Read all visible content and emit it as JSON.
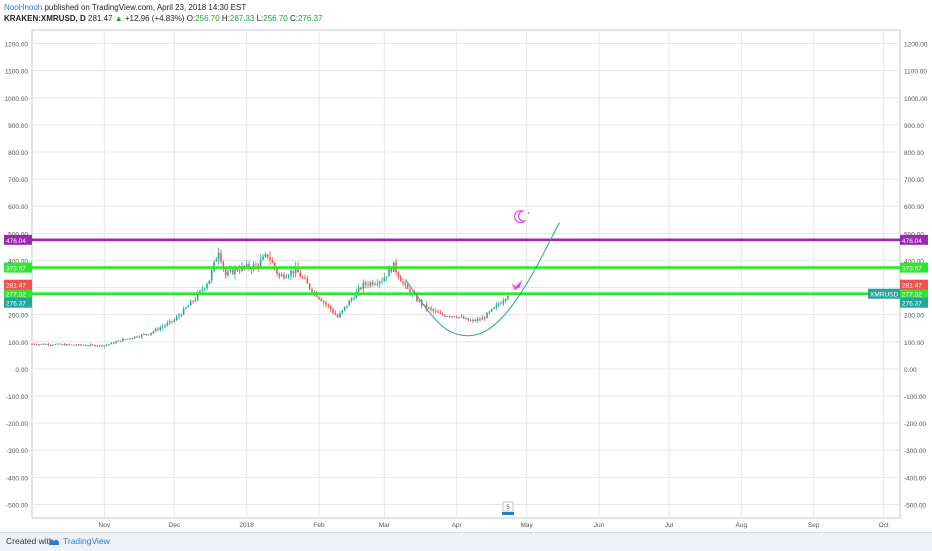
{
  "header": {
    "author": "NooHnooh",
    "published": " published on TradingView.com, April 23, 2018 14:30 EST",
    "symbol": "KRAKEN:XMRUSD, D",
    "last": "281.47",
    "arrow": "▲",
    "change": "+12.96 (+4.83%)",
    "o_label": "O:",
    "o_value": "256.70",
    "h_label": "H:",
    "h_value": "287.33",
    "l_label": "L:",
    "l_value": "256.70",
    "c_label": "C:",
    "c_value": "276.37"
  },
  "footer": {
    "created": "Created with",
    "brand": "TradingView"
  },
  "colors": {
    "up": "#26a69a",
    "down": "#ef5350",
    "resistance": "#9c27b0",
    "support": "#2ee62e",
    "curve": "#26a69a",
    "last_price": "#ef5350",
    "grid": "#e6e6e6",
    "icon": "#e040fb"
  },
  "chart_data": {
    "type": "candlestick",
    "symbol": "XMRUSD",
    "ylim": [
      -550,
      1250
    ],
    "yticks": [
      1200,
      1100,
      1000,
      900,
      800,
      700,
      600,
      500,
      400,
      300,
      200,
      100,
      0,
      -100,
      -200,
      -300,
      -400,
      -500
    ],
    "ytick_labels": [
      "1200.00",
      "1100.00",
      "1000.00",
      "900.00",
      "800.00",
      "700.00",
      "600.00",
      "500.00",
      "400.00",
      "300.00",
      "200.00",
      "100.00",
      "0.00",
      "-100.00",
      "-200.00",
      "-300.00",
      "-400.00",
      "-500.00"
    ],
    "x_start": "2017-10-01",
    "x_end": "2018-10-08",
    "xticks": [
      {
        "date": "2017-11-01",
        "label": "Nov"
      },
      {
        "date": "2017-12-01",
        "label": "Dec"
      },
      {
        "date": "2018-01-01",
        "label": "2018"
      },
      {
        "date": "2018-02-01",
        "label": "Feb"
      },
      {
        "date": "2018-03-01",
        "label": "Mar"
      },
      {
        "date": "2018-04-01",
        "label": "Apr"
      },
      {
        "date": "2018-05-01",
        "label": "May"
      },
      {
        "date": "2018-06-01",
        "label": "Jun"
      },
      {
        "date": "2018-07-01",
        "label": "Jul"
      },
      {
        "date": "2018-08-01",
        "label": "Aug"
      },
      {
        "date": "2018-09-01",
        "label": "Sep"
      },
      {
        "date": "2018-10-01",
        "label": "Oct"
      }
    ],
    "price_path": [
      [
        "2017-10-01",
        92
      ],
      [
        "2017-10-20",
        88
      ],
      [
        "2017-11-01",
        86
      ],
      [
        "2017-11-10",
        110
      ],
      [
        "2017-11-20",
        130
      ],
      [
        "2017-12-01",
        180
      ],
      [
        "2017-12-10",
        260
      ],
      [
        "2017-12-16",
        330
      ],
      [
        "2017-12-20",
        440
      ],
      [
        "2017-12-23",
        345
      ],
      [
        "2017-12-28",
        370
      ],
      [
        "2018-01-05",
        380
      ],
      [
        "2018-01-10",
        420
      ],
      [
        "2018-01-15",
        340
      ],
      [
        "2018-01-22",
        365
      ],
      [
        "2018-01-28",
        300
      ],
      [
        "2018-02-05",
        230
      ],
      [
        "2018-02-09",
        190
      ],
      [
        "2018-02-15",
        260
      ],
      [
        "2018-02-20",
        310
      ],
      [
        "2018-02-28",
        330
      ],
      [
        "2018-03-05",
        380
      ],
      [
        "2018-03-10",
        300
      ],
      [
        "2018-03-18",
        230
      ],
      [
        "2018-03-25",
        200
      ],
      [
        "2018-04-01",
        195
      ],
      [
        "2018-04-07",
        175
      ],
      [
        "2018-04-12",
        185
      ],
      [
        "2018-04-18",
        230
      ],
      [
        "2018-04-23",
        276.37
      ]
    ],
    "hlines": [
      {
        "value": 476.04,
        "label": "476.04",
        "color": "#9c27b0"
      },
      {
        "value": 373.67,
        "label": "373.67",
        "color": "#2ee62e"
      },
      {
        "value": 277.32,
        "label": "277.32",
        "color": "#2ee62e"
      }
    ],
    "price_labels": [
      {
        "value": 281.47,
        "label": "281.47",
        "color": "#ef5350"
      },
      {
        "value": 276.37,
        "label": "276.37",
        "color": "#26a69a"
      }
    ],
    "series_tag": "XMRUSD",
    "curve": [
      [
        "2018-03-10",
        330
      ],
      [
        "2018-03-25",
        150
      ],
      [
        "2018-04-05",
        115
      ],
      [
        "2018-04-15",
        140
      ],
      [
        "2018-04-25",
        230
      ],
      [
        "2018-05-05",
        370
      ],
      [
        "2018-05-15",
        540
      ]
    ],
    "event_badge": "5"
  }
}
